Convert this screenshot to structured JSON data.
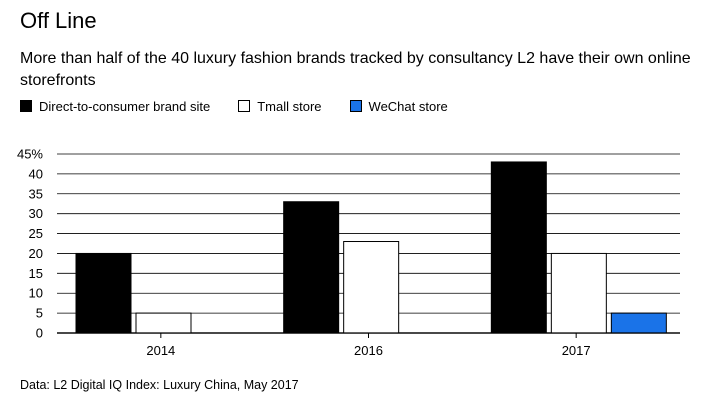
{
  "title": "Off Line",
  "subtitle": "More than half of the 40 luxury fashion brands tracked by consultancy L2 have their own online storefronts",
  "legend": [
    {
      "label": "Direct-to-consumer brand site",
      "color": "#000000"
    },
    {
      "label": "Tmall store",
      "color": "#ffffff"
    },
    {
      "label": "WeChat store",
      "color": "#1a73e8"
    }
  ],
  "source": "Data: L2 Digital IQ Index: Luxury China, May 2017",
  "chart_data": {
    "type": "bar",
    "categories": [
      "2014",
      "2016",
      "2017"
    ],
    "series": [
      {
        "name": "Direct-to-consumer brand site",
        "values": [
          20,
          33,
          43
        ],
        "color": "#000000"
      },
      {
        "name": "Tmall store",
        "values": [
          5,
          23,
          20
        ],
        "color": "#ffffff"
      },
      {
        "name": "WeChat store",
        "values": [
          0,
          0,
          5
        ],
        "color": "#1a73e8"
      }
    ],
    "yticks": [
      0,
      5,
      10,
      15,
      20,
      25,
      30,
      35,
      40,
      45
    ],
    "ytick_labels": [
      "0",
      "5",
      "10",
      "15",
      "20",
      "25",
      "30",
      "35",
      "40",
      "45%"
    ],
    "ylim": [
      0,
      45
    ],
    "ylabel": "",
    "xlabel": "",
    "grid": true
  }
}
